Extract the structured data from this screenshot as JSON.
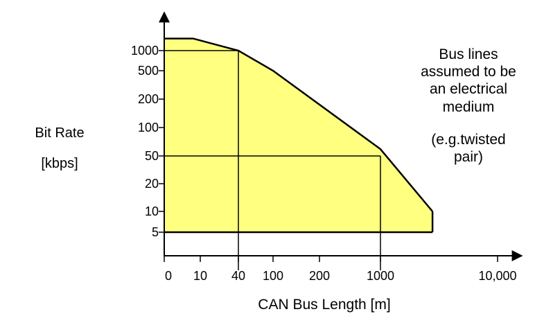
{
  "chart_data": {
    "type": "area",
    "title": "",
    "ylabel_lines": [
      "Bit Rate",
      "[kbps]"
    ],
    "xlabel": "CAN Bus Length [m]",
    "x_tick_labels": [
      "0",
      "10",
      "40",
      "100",
      "200",
      "1000",
      "10,000"
    ],
    "y_tick_labels": [
      "5",
      "10",
      "20",
      "50",
      "100",
      "200",
      "500",
      "1000"
    ],
    "fill_color": "#ffff80",
    "grid": false,
    "annotation_lines": [
      "Bus lines",
      "assumed to be",
      "an electrical",
      "medium",
      "(e.g.twisted",
      "pair)"
    ],
    "boundary": [
      {
        "x": 0,
        "y": 1300
      },
      {
        "x": 8,
        "y": 1300
      },
      {
        "x": 40,
        "y": 1000
      },
      {
        "x": 100,
        "y": 500
      },
      {
        "x": 1000,
        "y": 62
      },
      {
        "x": 5000,
        "y": 10
      },
      {
        "x": 5000,
        "y": 5
      },
      {
        "x": 0,
        "y": 5
      }
    ],
    "reference_points": [
      {
        "x": 40,
        "y": 1000
      },
      {
        "x": 1000,
        "y": 50
      }
    ]
  }
}
